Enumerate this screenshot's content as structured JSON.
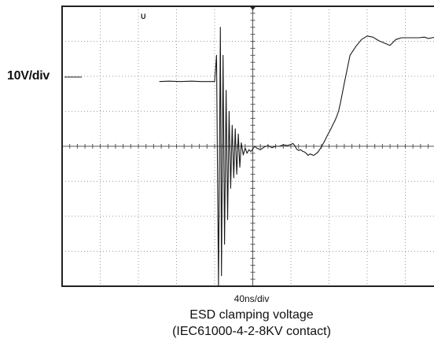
{
  "chart_data": {
    "type": "line",
    "title": "ESD clamping voltage",
    "subtitle": "(IEC61000-4-2-8KV contact)",
    "ylabel": "10V/div",
    "xlabel": "40ns/div",
    "grid": true,
    "x_divisions": 10,
    "y_divisions": 8,
    "xlim": [
      -2.5,
      5.5
    ],
    "ylim": [
      -2,
      4
    ],
    "x_unit": "div",
    "y_unit": "div",
    "marker_label": "U",
    "series": [
      {
        "x": [
          -2.45,
          -2.2,
          -1.9,
          -1.6,
          -1.35,
          -1.1,
          -1.0,
          -0.95,
          -0.9,
          -0.85,
          -0.82,
          -0.78,
          -0.74,
          -0.7,
          -0.66,
          -0.62,
          -0.58,
          -0.54,
          -0.5,
          -0.46,
          -0.42,
          -0.38,
          -0.34,
          -0.3,
          -0.25,
          -0.2,
          -0.15,
          -0.1,
          -0.05,
          0.0,
          0.05,
          0.1,
          0.2,
          0.3,
          0.4,
          0.5,
          0.6,
          0.7,
          0.8,
          0.9,
          1.0,
          1.05,
          1.1,
          1.15,
          1.2,
          1.25,
          1.3,
          1.35,
          1.4,
          1.45,
          1.5,
          1.55,
          1.6,
          1.65,
          1.7,
          1.75,
          1.8,
          1.85,
          1.9,
          1.95,
          2.0,
          2.05,
          2.1,
          2.15,
          2.2,
          2.25,
          2.3,
          2.4,
          2.55,
          2.7,
          2.85,
          3.0,
          3.15,
          3.3,
          3.45,
          3.6,
          3.75,
          3.9,
          4.05,
          4.2,
          4.35,
          4.5,
          4.6,
          4.7,
          4.8,
          4.9,
          5.0,
          5.1,
          5.2
        ],
        "y": [
          1.85,
          1.86,
          1.85,
          1.86,
          1.85,
          1.85,
          1.85,
          2.6,
          -4.4,
          3.4,
          -3.7,
          2.6,
          -2.8,
          1.6,
          -2.1,
          1.0,
          -1.2,
          0.6,
          -0.9,
          0.5,
          -0.8,
          0.35,
          -0.6,
          0.1,
          -0.25,
          -0.05,
          -0.2,
          -0.1,
          -0.15,
          -0.08,
          0.0,
          -0.05,
          -0.1,
          -0.02,
          0.02,
          -0.04,
          0.0,
          0.0,
          0.04,
          0.02,
          0.05,
          0.08,
          0.02,
          -0.08,
          -0.12,
          -0.1,
          -0.14,
          -0.16,
          -0.2,
          -0.26,
          -0.22,
          -0.24,
          -0.26,
          -0.22,
          -0.18,
          -0.1,
          -0.02,
          0.08,
          0.18,
          0.3,
          0.4,
          0.5,
          0.62,
          0.72,
          0.85,
          1.0,
          1.25,
          1.8,
          2.6,
          2.85,
          3.05,
          3.15,
          3.12,
          3.02,
          2.95,
          2.88,
          3.05,
          3.1,
          3.1,
          3.1,
          3.1,
          3.12,
          3.08,
          3.1,
          3.12,
          3.1,
          3.12,
          3.1,
          3.12
        ]
      }
    ]
  }
}
